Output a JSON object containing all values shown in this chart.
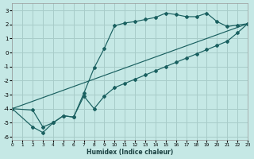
{
  "xlabel": "Humidex (Indice chaleur)",
  "background_color": "#c5e8e5",
  "grid_color": "#a8ccc9",
  "line_color": "#1a6060",
  "xlim": [
    0,
    23
  ],
  "ylim": [
    -6.2,
    3.5
  ],
  "yticks": [
    -6,
    -5,
    -4,
    -3,
    -2,
    -1,
    0,
    1,
    2,
    3
  ],
  "xticks": [
    0,
    1,
    2,
    3,
    4,
    5,
    6,
    7,
    8,
    9,
    10,
    11,
    12,
    13,
    14,
    15,
    16,
    17,
    18,
    19,
    20,
    21,
    22,
    23
  ],
  "line1_x": [
    0,
    2,
    3,
    4,
    5,
    6,
    7,
    8,
    9,
    10,
    11,
    12,
    13,
    14,
    15,
    16,
    17,
    18,
    19,
    20,
    21,
    22,
    23
  ],
  "line1_y": [
    -4.0,
    -4.1,
    -5.3,
    -5.0,
    -4.5,
    -4.6,
    -2.9,
    -1.1,
    0.3,
    1.9,
    2.1,
    2.2,
    2.35,
    2.5,
    2.8,
    2.7,
    2.55,
    2.55,
    2.8,
    2.2,
    1.85,
    1.95,
    2.05
  ],
  "line2_x": [
    0,
    2,
    3,
    4,
    5,
    6,
    7,
    8,
    9,
    10,
    11,
    12,
    13,
    14,
    15,
    16,
    17,
    18,
    19,
    20,
    21,
    22,
    23
  ],
  "line2_y": [
    -4.0,
    -5.3,
    -5.7,
    -5.0,
    -4.5,
    -4.6,
    -3.1,
    -4.0,
    -3.1,
    -2.5,
    -2.2,
    -1.9,
    -1.6,
    -1.3,
    -1.0,
    -0.7,
    -0.4,
    -0.1,
    0.2,
    0.5,
    0.8,
    1.4,
    2.05
  ],
  "line3_x": [
    0,
    23
  ],
  "line3_y": [
    -4.0,
    2.05
  ]
}
